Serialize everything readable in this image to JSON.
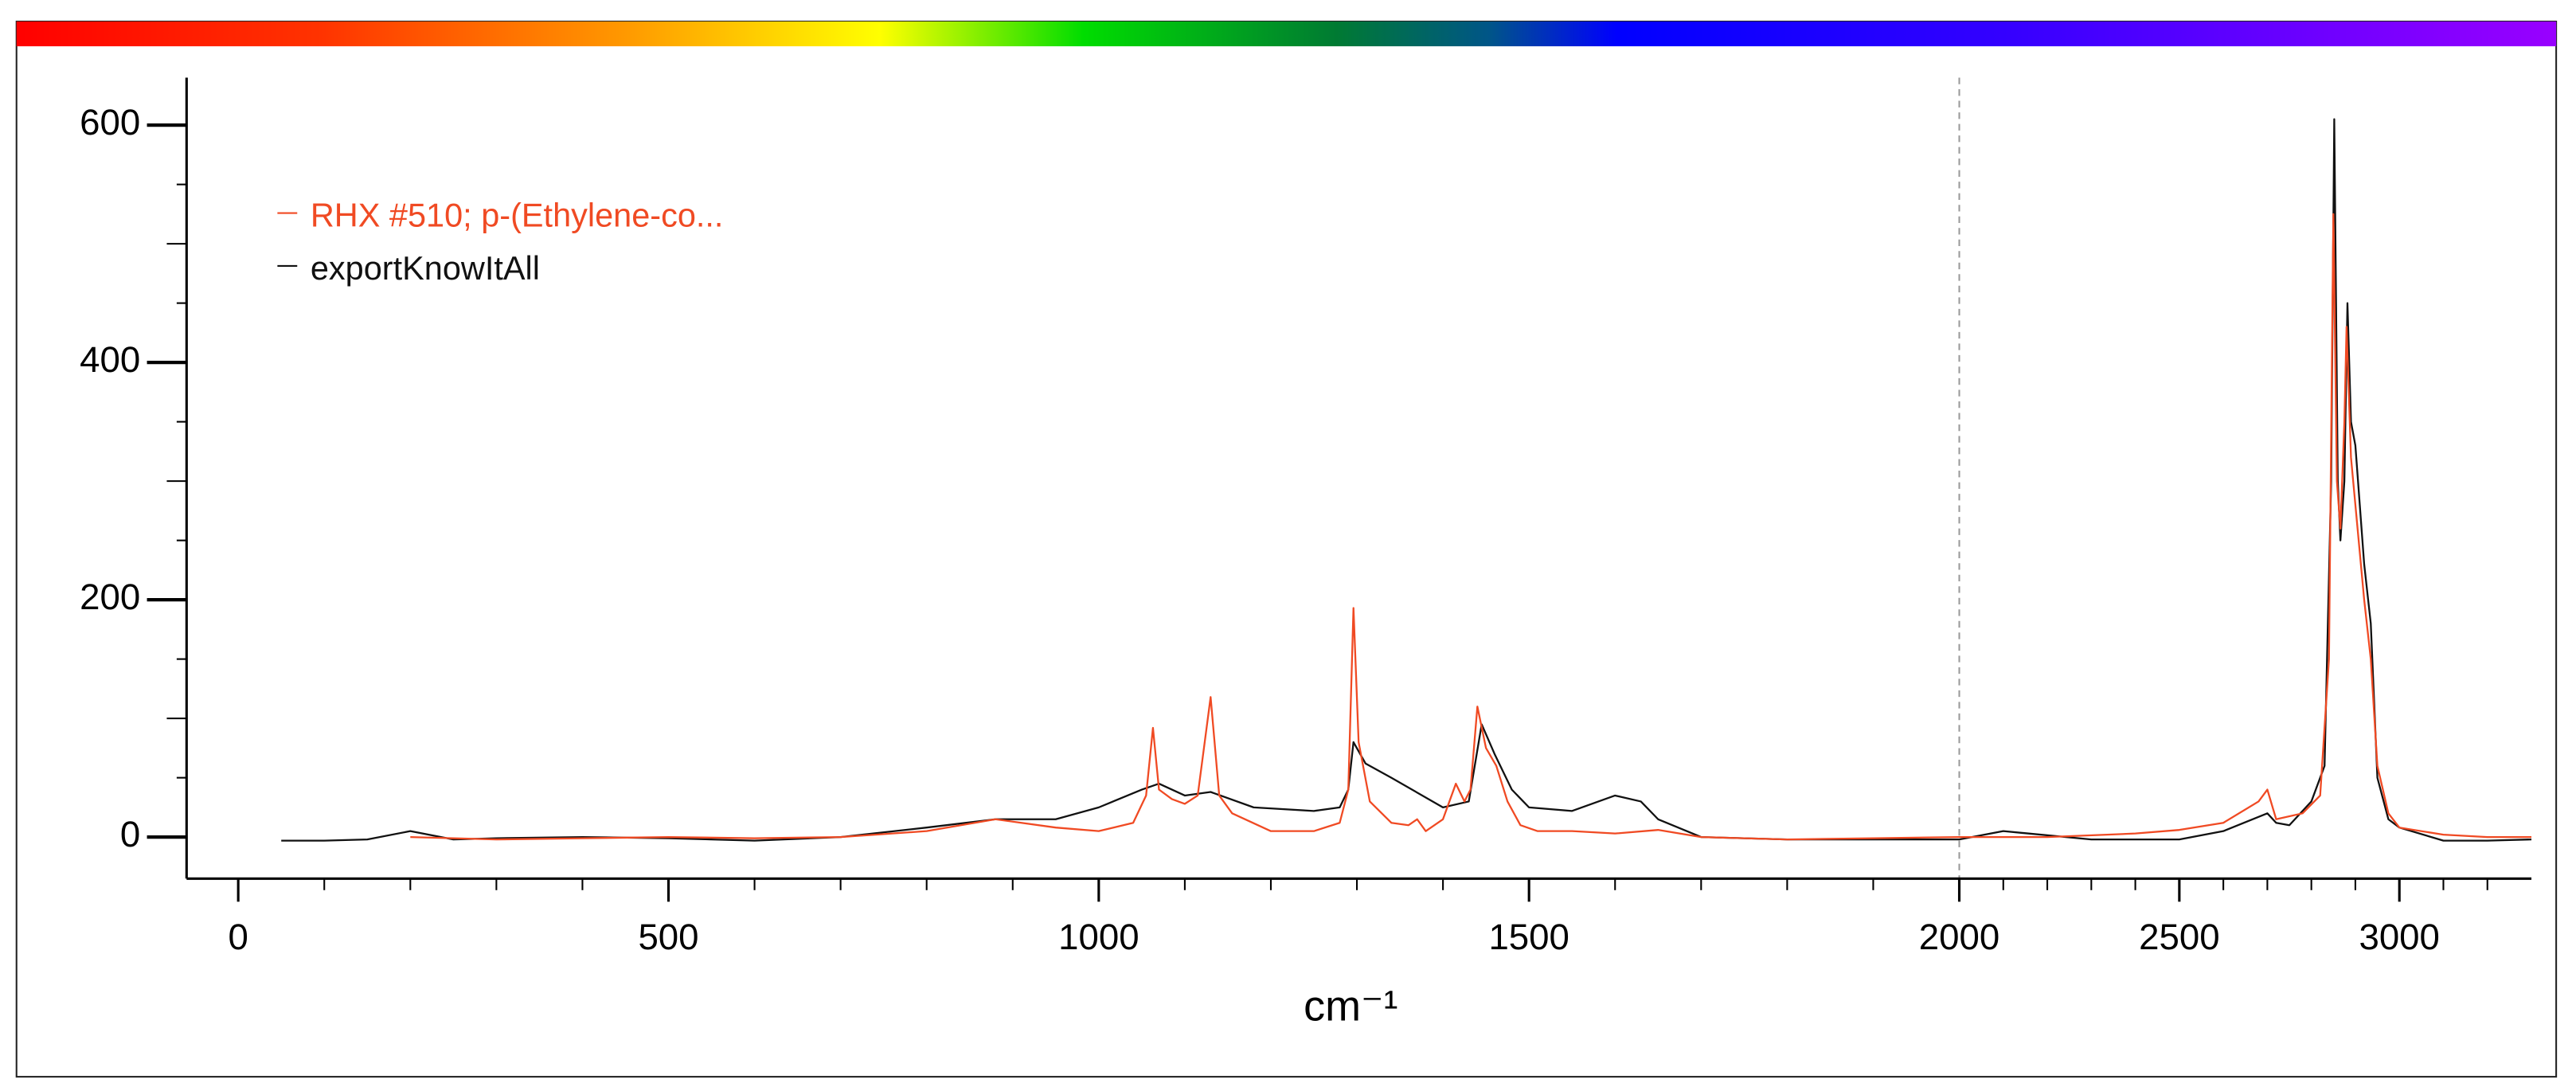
{
  "chart_data": {
    "type": "line",
    "x_label": "cm⁻¹",
    "xlim": [
      -60,
      3300
    ],
    "ylim": [
      -35,
      640
    ],
    "xticks": [
      0,
      500,
      1000,
      1500,
      2000,
      2500,
      3000
    ],
    "yticks": [
      0,
      200,
      400,
      600
    ],
    "xminorticks": [
      100,
      200,
      300,
      400,
      600,
      700,
      800,
      900,
      1100,
      1200,
      1300,
      1400,
      1600,
      1700,
      1800,
      1900,
      2100,
      2200,
      2300,
      2400,
      2600,
      2700,
      2800,
      2900,
      3100,
      3200
    ],
    "yminorticks": [
      50,
      100,
      150,
      250,
      300,
      350,
      450,
      500,
      550
    ],
    "axis_break": 2000,
    "legend": "upper left",
    "series": [
      {
        "name": "RHX #510; p-(Ethylene-co...",
        "color": "#f04a23",
        "x": [
          200,
          300,
          400,
          500,
          600,
          700,
          800,
          880,
          950,
          1000,
          1040,
          1055,
          1063,
          1070,
          1085,
          1100,
          1115,
          1130,
          1140,
          1155,
          1200,
          1250,
          1280,
          1290,
          1296,
          1302,
          1315,
          1340,
          1360,
          1370,
          1380,
          1400,
          1415,
          1425,
          1432,
          1440,
          1450,
          1462,
          1475,
          1490,
          1510,
          1550,
          1600,
          1650,
          1700,
          1800,
          1900,
          2000,
          2200,
          2400,
          2500,
          2600,
          2680,
          2700,
          2720,
          2780,
          2820,
          2840,
          2850,
          2858,
          2866,
          2875,
          2880,
          2890,
          2905,
          2920,
          2935,
          2950,
          2975,
          3000,
          3100,
          3200,
          3300
        ],
        "values": [
          0,
          -2,
          -1,
          0,
          -1,
          0,
          5,
          15,
          8,
          5,
          12,
          35,
          92,
          40,
          32,
          28,
          35,
          118,
          35,
          20,
          5,
          5,
          12,
          40,
          193,
          80,
          30,
          12,
          10,
          15,
          5,
          15,
          45,
          30,
          40,
          110,
          75,
          60,
          30,
          10,
          5,
          5,
          3,
          6,
          0,
          -2,
          -1,
          0,
          0,
          3,
          6,
          12,
          30,
          40,
          15,
          20,
          35,
          150,
          525,
          300,
          260,
          350,
          430,
          320,
          260,
          200,
          150,
          60,
          20,
          8,
          2,
          0,
          0
        ]
      },
      {
        "name": "exportKnowItAll",
        "color": "#111111",
        "x": [
          50,
          100,
          150,
          200,
          250,
          300,
          400,
          500,
          600,
          700,
          800,
          880,
          950,
          1000,
          1050,
          1070,
          1100,
          1130,
          1180,
          1250,
          1280,
          1290,
          1296,
          1310,
          1340,
          1400,
          1430,
          1445,
          1460,
          1480,
          1500,
          1550,
          1600,
          1630,
          1650,
          1700,
          1800,
          2000,
          2100,
          2300,
          2500,
          2600,
          2700,
          2720,
          2750,
          2800,
          2830,
          2845,
          2852,
          2860,
          2866,
          2875,
          2882,
          2890,
          2900,
          2920,
          2935,
          2950,
          2975,
          3000,
          3100,
          3200,
          3300
        ],
        "values": [
          -3,
          -3,
          -2,
          5,
          -2,
          -1,
          0,
          -1,
          -3,
          0,
          8,
          15,
          15,
          25,
          40,
          45,
          35,
          38,
          25,
          22,
          25,
          40,
          80,
          62,
          50,
          25,
          30,
          95,
          70,
          40,
          25,
          22,
          35,
          30,
          15,
          0,
          -2,
          -2,
          5,
          -2,
          -2,
          5,
          20,
          12,
          10,
          30,
          60,
          300,
          605,
          300,
          250,
          300,
          450,
          350,
          330,
          230,
          180,
          50,
          15,
          8,
          -3,
          -3,
          -2
        ]
      }
    ]
  }
}
